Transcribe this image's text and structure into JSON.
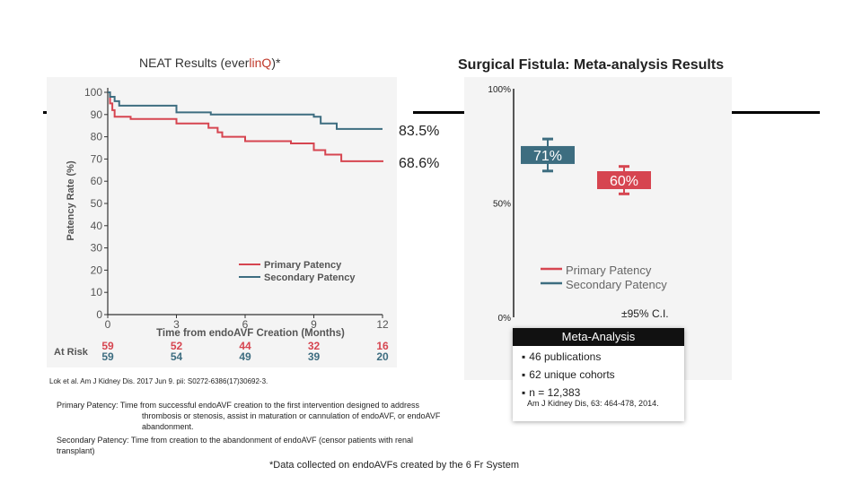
{
  "titles": {
    "left_prefix": "NEAT Results (ever",
    "left_brand": "linQ",
    "left_suffix": ")*",
    "right": "Surgical Fistula: Meta-analysis Results"
  },
  "chart_data": [
    {
      "type": "line",
      "title": "NEAT Results (everlinQ)*",
      "xlabel": "Time from endoAVF Creation (Months)",
      "ylabel": "Patency Rate (%)",
      "xlim": [
        0,
        12
      ],
      "ylim": [
        0,
        100
      ],
      "x_ticks": [
        "0",
        "3",
        "6",
        "9",
        "12"
      ],
      "y_ticks": [
        "0",
        "10",
        "20",
        "30",
        "40",
        "50",
        "60",
        "70",
        "80",
        "90",
        "100"
      ],
      "series": [
        {
          "name": "Primary Patency",
          "color": "#d64550",
          "x": [
            0,
            0.1,
            0.2,
            0.3,
            1.0,
            2.0,
            3.0,
            4.0,
            4.4,
            4.8,
            5.0,
            5.5,
            6.0,
            7.0,
            8.0,
            8.7,
            9.0,
            9.5,
            9.8,
            10.2,
            12.0
          ],
          "y": [
            100,
            95,
            92,
            89,
            88,
            88,
            86,
            86,
            84,
            82,
            80,
            80,
            78,
            78,
            77,
            77,
            74,
            72,
            72,
            69,
            68.6
          ]
        },
        {
          "name": "Secondary Patency",
          "color": "#3d6d80",
          "x": [
            0,
            0.1,
            0.3,
            0.5,
            1.5,
            3.0,
            4.5,
            9.0,
            9.3,
            10.0,
            12.0
          ],
          "y": [
            100,
            98,
            96,
            94,
            94,
            91,
            90,
            89,
            86,
            83.5,
            83.5
          ]
        }
      ],
      "at_risk": {
        "label": "At Risk",
        "primary": [
          "59",
          "52",
          "44",
          "32",
          "16"
        ],
        "secondary": [
          "59",
          "54",
          "49",
          "39",
          "20"
        ]
      },
      "annotations": [
        "83.5%",
        "68.6%"
      ]
    },
    {
      "type": "scatter",
      "title": "Surgical Fistula: Meta-analysis Results",
      "ylim": [
        0,
        100
      ],
      "y_ticks": [
        "0%",
        "50%",
        "100%"
      ],
      "series": [
        {
          "name": "Primary Patency",
          "color": "#d64550",
          "value": 60,
          "ci_low": 54,
          "ci_high": 66,
          "label": "60%"
        },
        {
          "name": "Secondary Patency",
          "color": "#3d6d80",
          "value": 71,
          "ci_low": 64,
          "ci_high": 78,
          "label": "71%"
        }
      ],
      "ci_label": "±95% C.I."
    }
  ],
  "meta": {
    "header": "Meta-Analysis",
    "items": [
      "46 publications",
      "62 unique cohorts",
      "n = 12,383"
    ],
    "citation": "Am J Kidney Dis, 63: 464-478, 2014."
  },
  "notes": {
    "citation_left": "Lok et al. Am J Kidney Dis. 2017 Jun 9. pii: S0272-6386(17)30692-3.",
    "primary_def_1": "Primary Patency: Time from successful endoAVF creation to the first intervention designed to  address",
    "primary_def_2": "thrombosis or stenosis, assist in maturation or cannulation of endoAVF,  or endoAVF",
    "primary_def_3": "abandonment.",
    "secondary_def_1": "Secondary Patency: Time from creation to the abandonment of endoAVF (censor patients with renal",
    "secondary_def_2": "transplant)",
    "footnote": "*Data collected on endoAVFs created by the 6 Fr System"
  }
}
